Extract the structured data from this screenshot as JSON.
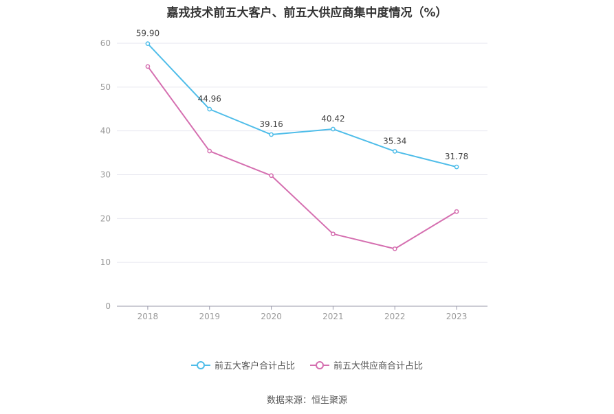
{
  "chart_data": {
    "type": "line",
    "title": "嘉戎技术前五大客户、前五大供应商集中度情况（%）",
    "categories": [
      "2018",
      "2019",
      "2020",
      "2021",
      "2022",
      "2023"
    ],
    "ylim": [
      0,
      60
    ],
    "yticks": [
      0,
      10,
      20,
      30,
      40,
      50,
      60
    ],
    "grid": true,
    "legend_position": "bottom",
    "series": [
      {
        "name": "前五大客户合计占比",
        "color": "#4fbde9",
        "values": [
          59.9,
          44.96,
          39.16,
          40.42,
          35.34,
          31.78
        ],
        "labels": [
          "59.90",
          "44.96",
          "39.16",
          "40.42",
          "35.34",
          "31.78"
        ]
      },
      {
        "name": "前五大供应商合计占比",
        "color": "#d56fb0",
        "values": [
          54.7,
          35.4,
          29.8,
          16.5,
          13.1,
          21.6
        ],
        "labels": []
      }
    ]
  },
  "source": "数据来源：恒生聚源"
}
